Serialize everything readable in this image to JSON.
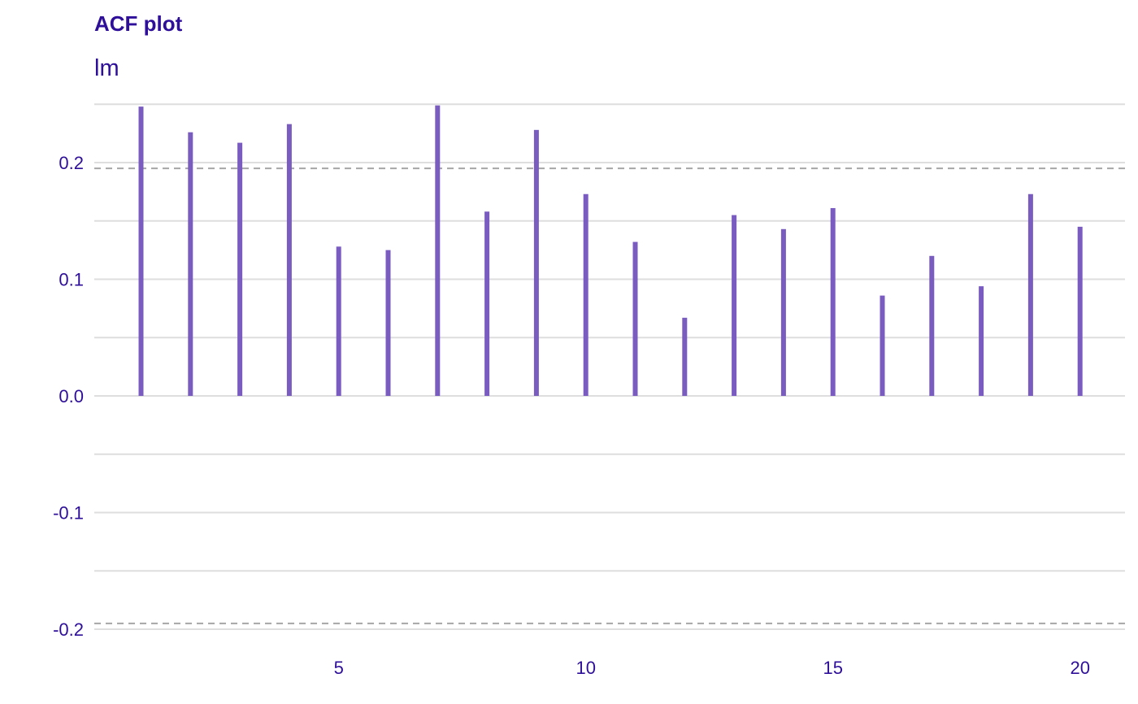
{
  "chart_data": {
    "type": "bar",
    "title": "ACF plot",
    "subtitle": "lm",
    "xlabel": "",
    "ylabel": "",
    "ylim": [
      -0.2,
      0.25
    ],
    "xlim": [
      0.5,
      20.5
    ],
    "grid": true,
    "x_ticks": [
      5,
      10,
      15,
      20
    ],
    "y_ticks": [
      -0.2,
      -0.1,
      0.0,
      0.1,
      0.2
    ],
    "y_tick_labels": [
      "-0.2",
      "-0.1",
      "0.0",
      "0.1",
      "0.2"
    ],
    "x_tick_labels": [
      "5",
      "10",
      "15",
      "20"
    ],
    "confidence_bounds": [
      0.195,
      -0.195
    ],
    "lags": [
      1,
      2,
      3,
      4,
      5,
      6,
      7,
      8,
      9,
      10,
      11,
      12,
      13,
      14,
      15,
      16,
      17,
      18,
      19,
      20
    ],
    "values": [
      0.248,
      0.226,
      0.217,
      0.233,
      0.128,
      0.125,
      0.249,
      0.158,
      0.228,
      0.173,
      0.132,
      0.067,
      0.155,
      0.143,
      0.161,
      0.086,
      0.12,
      0.094,
      0.173,
      0.145
    ],
    "colors": {
      "bar": "#7a5cc1",
      "text": "#2e0f99",
      "grid": "#dedede",
      "bound": "#a6a6a6"
    }
  }
}
